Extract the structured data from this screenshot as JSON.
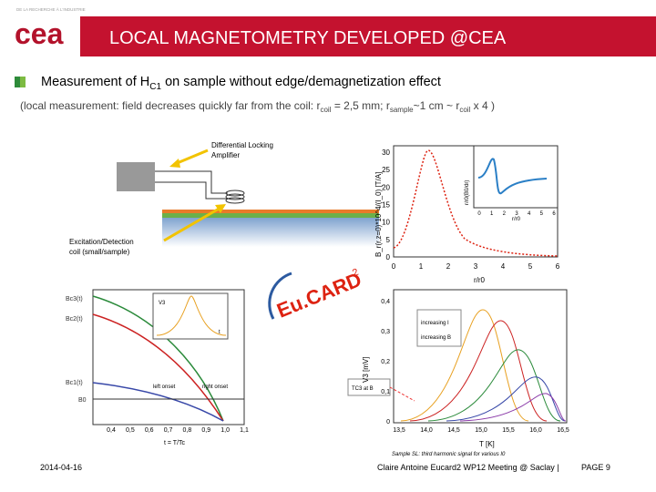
{
  "header": {
    "tagline": "DE LA RECHERCHE À L'INDUSTRIE",
    "logo": "cea",
    "title": "LOCAL MAGNETOMETRY DEVELOPED @CEA"
  },
  "heading": {
    "parts": [
      "Measurement of H",
      "C1",
      " on sample without edge/demagnetization effect"
    ]
  },
  "subtitle": {
    "parts": [
      "(local measurement: field decreases quickly far from the coil: r",
      "coil",
      " = 2,5 mm; r",
      "sample",
      "~1 cm ~ r",
      "coil",
      " x 4 )"
    ]
  },
  "setup": {
    "amplifier": [
      "Differential Locking",
      "Amplifier"
    ],
    "coil": [
      "Excitation/Detection",
      "coil (small/sample)"
    ]
  },
  "field_plot": {
    "ylabel": "B_r(r,z=0)*10^4/(I_0) [T/A]",
    "xlabel": "r/r0",
    "xticks": [
      "0",
      "1",
      "2",
      "3",
      "4",
      "5",
      "6"
    ],
    "yticks": [
      "0",
      "5",
      "10",
      "15",
      "20",
      "25",
      "30"
    ],
    "inset_xlabel": "r/r0",
    "inset_xticks": [
      "0",
      "1",
      "2",
      "3",
      "4",
      "5",
      "6"
    ],
    "inset_ylabel": "r/r0(B0/dr)"
  },
  "logo2": {
    "text": "Eu.CARD",
    "sup": "2"
  },
  "phase_plot": {
    "labels": [
      "Bc3(t)",
      "Bc2(t)",
      "Bc1(t)",
      "B0"
    ],
    "inset": [
      "V3",
      "t"
    ],
    "onset": [
      "left onset",
      "right onset"
    ],
    "xticks": [
      "0,4",
      "0,5",
      "0,6",
      "0,7",
      "0,8",
      "0,9",
      "1,0",
      "1,1"
    ],
    "xlabel": "t = T/Tc"
  },
  "signal_plot": {
    "ylabel": "V3 [mV]",
    "xlabel": "T [K]",
    "yticks": [
      "0",
      "0,1",
      "0,2",
      "0,3",
      "0,4"
    ],
    "xticks": [
      "13,5",
      "14,0",
      "14,5",
      "15,0",
      "15,5",
      "16,0",
      "16,5"
    ],
    "legend": [
      "increasing I",
      "increasing B"
    ],
    "note": "TC3 at B",
    "caption": "Sample SL: third harmonic signal for various I0"
  },
  "footer": {
    "date": "2014-04-16",
    "meeting": "Claire Antoine Eucard2 WP12 Meeting @ Saclay |",
    "page": "PAGE 9"
  }
}
